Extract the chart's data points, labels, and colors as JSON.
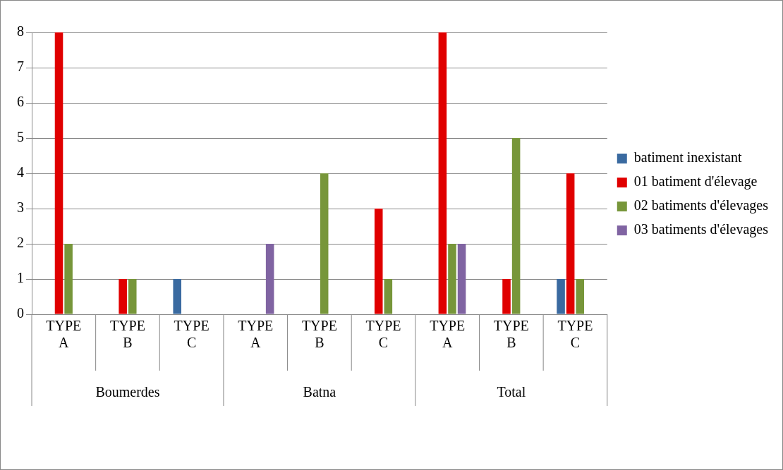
{
  "chart_data": {
    "type": "bar",
    "categories": [
      "TYPE A",
      "TYPE B",
      "TYPE C",
      "TYPE A",
      "TYPE B",
      "TYPE C",
      "TYPE A",
      "TYPE B",
      "TYPE C"
    ],
    "annotations": [
      "Boumerdes",
      "Batna",
      "Total"
    ],
    "series": [
      {
        "name": "batiment inexistant",
        "color": "#3a6aa0",
        "values": [
          0,
          0,
          1,
          0,
          0,
          0,
          0,
          0,
          1
        ]
      },
      {
        "name": "01 batiment d'élevage",
        "color": "#e00000",
        "values": [
          8,
          1,
          0,
          0,
          0,
          3,
          8,
          1,
          4
        ]
      },
      {
        "name": "02 batiments d'élevages",
        "color": "#77963a",
        "values": [
          2,
          1,
          0,
          0,
          4,
          1,
          2,
          5,
          1
        ]
      },
      {
        "name": "03 batiments d'élevages",
        "color": "#8064a2",
        "values": [
          0,
          0,
          0,
          2,
          0,
          0,
          2,
          0,
          0
        ]
      }
    ],
    "ylim": [
      0,
      8
    ],
    "yticks": [
      0,
      1,
      2,
      3,
      4,
      5,
      6,
      7,
      8
    ],
    "grid": "y",
    "legend": "right"
  }
}
